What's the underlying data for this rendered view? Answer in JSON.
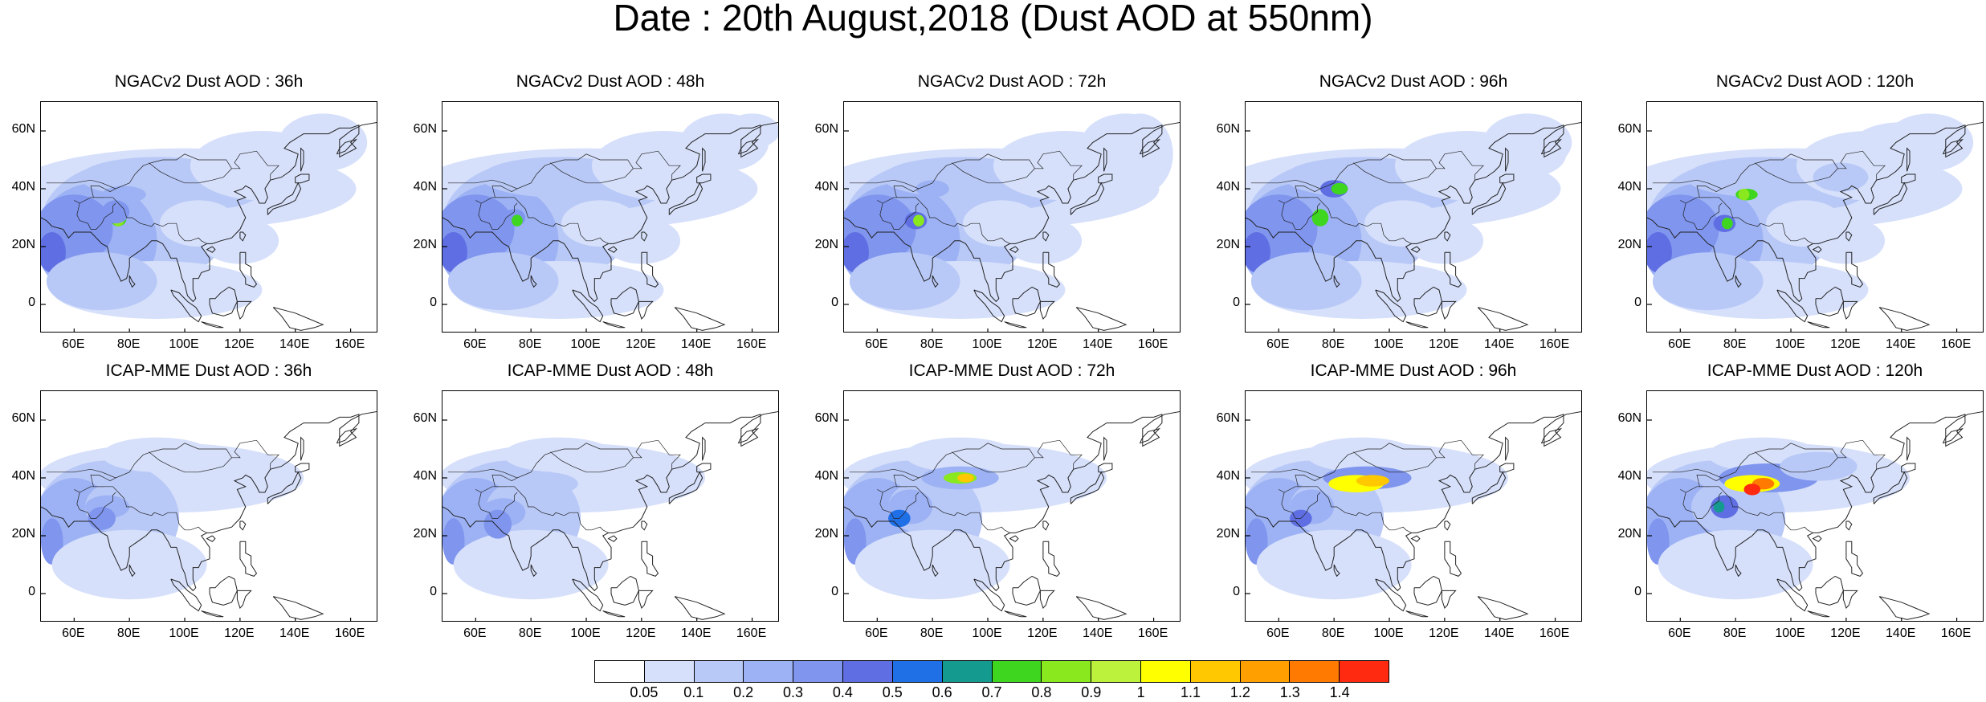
{
  "title": "Date : 20th August,2018 (Dust AOD at 550nm)",
  "panels": [
    {
      "title": "NGACv2 Dust AOD : 36h"
    },
    {
      "title": "NGACv2 Dust AOD : 48h"
    },
    {
      "title": "NGACv2 Dust AOD : 72h"
    },
    {
      "title": "NGACv2 Dust AOD : 96h"
    },
    {
      "title": "NGACv2 Dust AOD : 120h"
    },
    {
      "title": "ICAP-MME Dust AOD : 36h"
    },
    {
      "title": "ICAP-MME Dust AOD : 48h"
    },
    {
      "title": "ICAP-MME Dust AOD : 72h"
    },
    {
      "title": "ICAP-MME Dust AOD : 96h"
    },
    {
      "title": "ICAP-MME Dust AOD : 120h"
    }
  ],
  "lat_ticks": [
    "60N",
    "40N",
    "20N",
    "0"
  ],
  "lon_ticks": [
    "60E",
    "80E",
    "100E",
    "120E",
    "140E",
    "160E"
  ],
  "colorbar": {
    "labels": [
      "0.05",
      "0.1",
      "0.2",
      "0.3",
      "0.4",
      "0.5",
      "0.6",
      "0.7",
      "0.8",
      "0.9",
      "1",
      "1.1",
      "1.2",
      "1.3",
      "1.4"
    ],
    "colors": [
      "#ffffff",
      "#d6e0fb",
      "#b9c9f7",
      "#9db2f4",
      "#7f95ee",
      "#5f6fe3",
      "#1f6fe6",
      "#159a8f",
      "#3fd61f",
      "#8ae81e",
      "#bdf23c",
      "#ffff00",
      "#ffc800",
      "#ffa000",
      "#ff7a00",
      "#ff2a0f"
    ]
  }
}
